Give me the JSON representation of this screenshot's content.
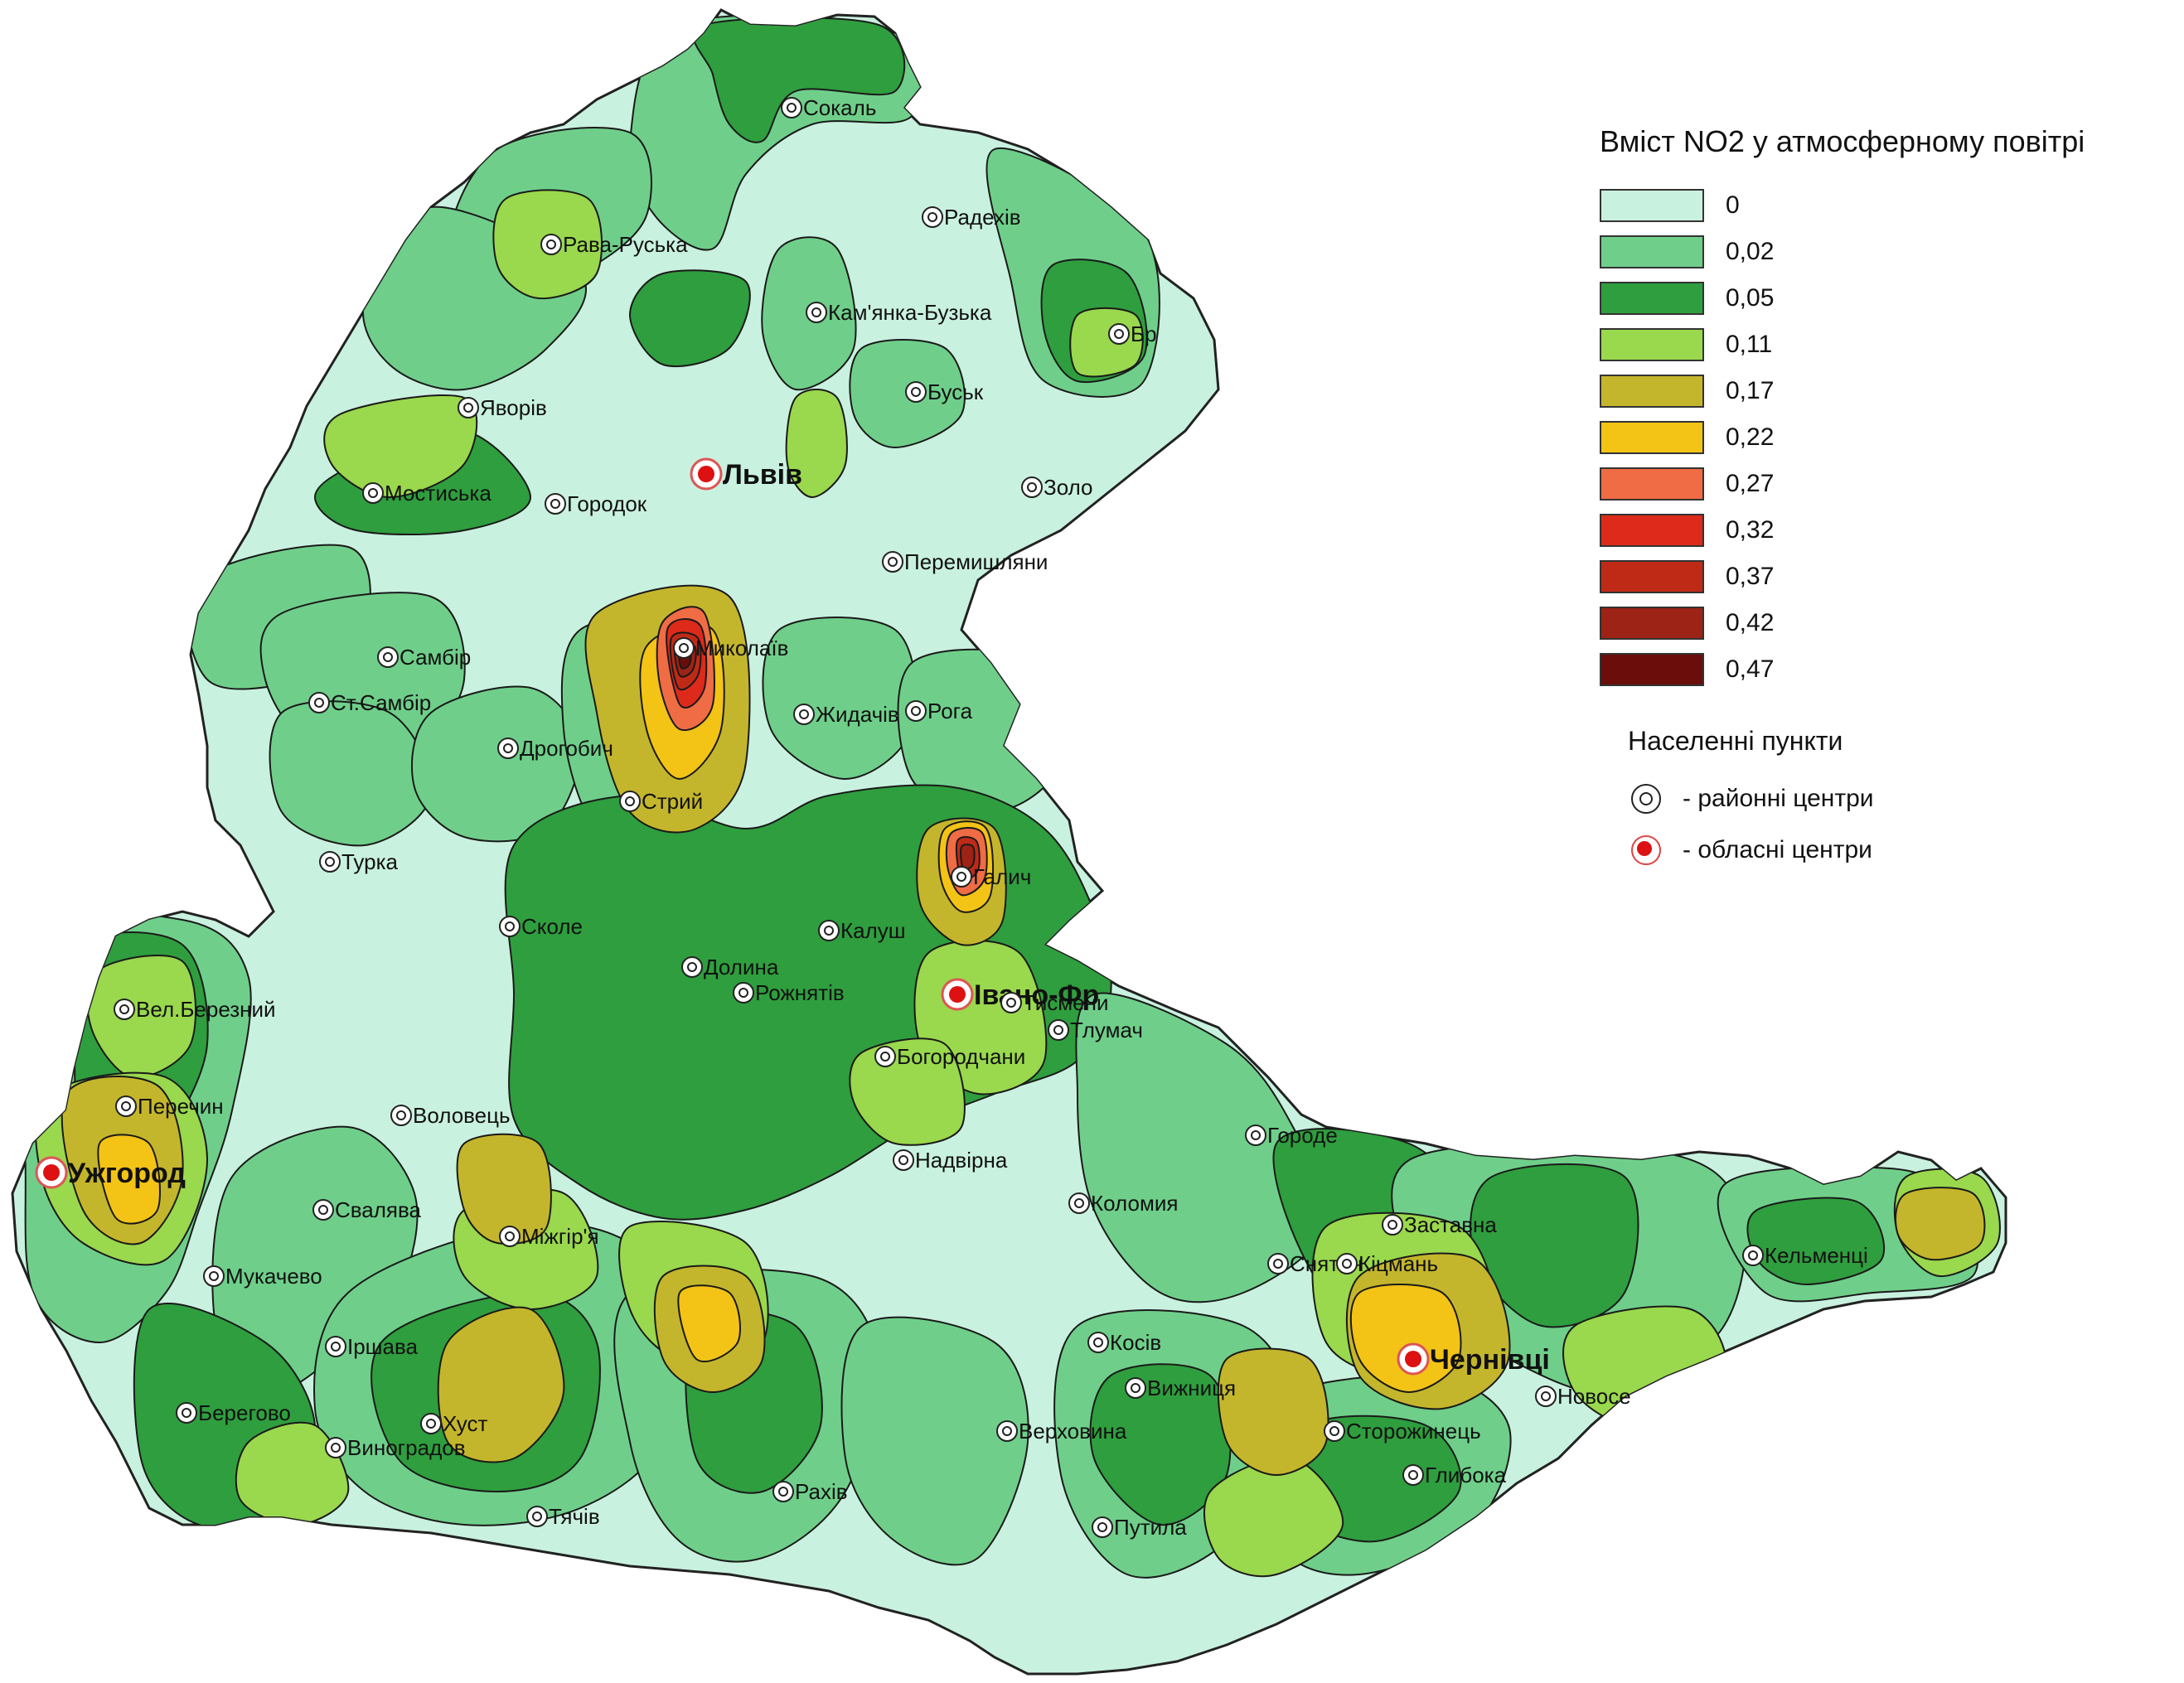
{
  "legend": {
    "title": "Вміст NO2 у атмосферному повітрі",
    "classes": [
      {
        "value": "0",
        "color": "#c9f1df"
      },
      {
        "value": "0,02",
        "color": "#6fcf8a"
      },
      {
        "value": "0,05",
        "color": "#2f9e3e"
      },
      {
        "value": "0,11",
        "color": "#9ad84d"
      },
      {
        "value": "0,17",
        "color": "#c4b62c"
      },
      {
        "value": "0,22",
        "color": "#f3c316"
      },
      {
        "value": "0,27",
        "color": "#ef6c44"
      },
      {
        "value": "0,32",
        "color": "#dd2a1a"
      },
      {
        "value": "0,37",
        "color": "#bf2a17"
      },
      {
        "value": "0,42",
        "color": "#9c2316"
      },
      {
        "value": "0,47",
        "color": "#6a0d0b"
      }
    ],
    "settlements_title": "Населенні пункти",
    "symbols": [
      {
        "kind": "district",
        "label": "- районні центри"
      },
      {
        "kind": "oblast",
        "label": "- обласні центри"
      }
    ]
  },
  "cities": [
    {
      "name": "Сокаль",
      "kind": "district"
    },
    {
      "name": "Радехів",
      "kind": "district"
    },
    {
      "name": "Рава-Руська",
      "kind": "district"
    },
    {
      "name": "Кам'янка-Бузька",
      "kind": "district"
    },
    {
      "name": "Бр",
      "kind": "district"
    },
    {
      "name": "Буськ",
      "kind": "district"
    },
    {
      "name": "Яворів",
      "kind": "district"
    },
    {
      "name": "Львів",
      "kind": "oblast"
    },
    {
      "name": "Мостиська",
      "kind": "district"
    },
    {
      "name": "Городок",
      "kind": "district"
    },
    {
      "name": "Золо",
      "kind": "district"
    },
    {
      "name": "Перемишляни",
      "kind": "district"
    },
    {
      "name": "Самбір",
      "kind": "district"
    },
    {
      "name": "Миколаїв",
      "kind": "district"
    },
    {
      "name": "Ст.Самбір",
      "kind": "district"
    },
    {
      "name": "Рога",
      "kind": "district"
    },
    {
      "name": "Дрогобич",
      "kind": "district"
    },
    {
      "name": "Жидачів",
      "kind": "district"
    },
    {
      "name": "Стрий",
      "kind": "district"
    },
    {
      "name": "Турка",
      "kind": "district"
    },
    {
      "name": "Галич",
      "kind": "district"
    },
    {
      "name": "Сколе",
      "kind": "district"
    },
    {
      "name": "Калуш",
      "kind": "district"
    },
    {
      "name": "Івано-Фр",
      "kind": "oblast"
    },
    {
      "name": "Долина",
      "kind": "district"
    },
    {
      "name": "Рожнятів",
      "kind": "district"
    },
    {
      "name": "Тисмени",
      "kind": "district"
    },
    {
      "name": "Тлумач",
      "kind": "district"
    },
    {
      "name": "Вел.Березний",
      "kind": "district"
    },
    {
      "name": "Богородчани",
      "kind": "district"
    },
    {
      "name": "Перечин",
      "kind": "district"
    },
    {
      "name": "Воловець",
      "kind": "district"
    },
    {
      "name": "Городе",
      "kind": "district"
    },
    {
      "name": "Надвірна",
      "kind": "district"
    },
    {
      "name": "Ужгород",
      "kind": "oblast"
    },
    {
      "name": "Свалява",
      "kind": "district"
    },
    {
      "name": "Коломия",
      "kind": "district"
    },
    {
      "name": "Заставна",
      "kind": "district"
    },
    {
      "name": "Міжгір'я",
      "kind": "district"
    },
    {
      "name": "Мукачево",
      "kind": "district"
    },
    {
      "name": "Кельменці",
      "kind": "district"
    },
    {
      "name": "Снятин",
      "kind": "district"
    },
    {
      "name": "Кіцмань",
      "kind": "district"
    },
    {
      "name": "Іршава",
      "kind": "district"
    },
    {
      "name": "Косів",
      "kind": "district"
    },
    {
      "name": "Чернівці",
      "kind": "oblast"
    },
    {
      "name": "Берегово",
      "kind": "district"
    },
    {
      "name": "Вижниця",
      "kind": "district"
    },
    {
      "name": "Новосе",
      "kind": "district"
    },
    {
      "name": "Хуст",
      "kind": "district"
    },
    {
      "name": "Верховина",
      "kind": "district"
    },
    {
      "name": "Сторожинець",
      "kind": "district"
    },
    {
      "name": "Виноградов",
      "kind": "district"
    },
    {
      "name": "Тячів",
      "kind": "district"
    },
    {
      "name": "Рахів",
      "kind": "district"
    },
    {
      "name": "Глибока",
      "kind": "district"
    },
    {
      "name": "Путила",
      "kind": "district"
    }
  ]
}
